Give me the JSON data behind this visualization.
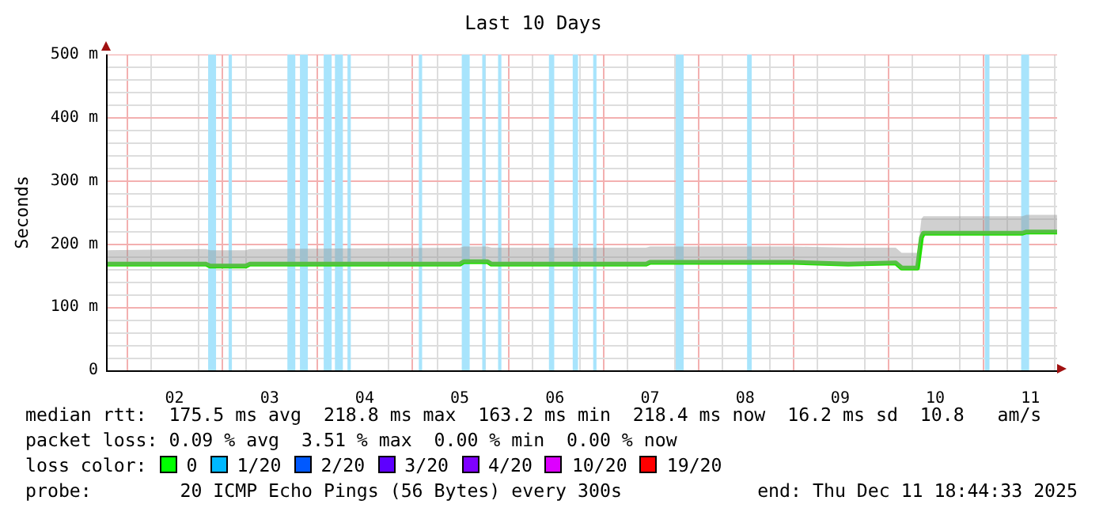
{
  "chart_data": {
    "type": "line",
    "title": "Last 10 Days",
    "ylabel": "Seconds",
    "xlim": [
      "2025-12-01T18:44",
      "2025-12-11T18:44"
    ],
    "xticks": [
      {
        "value": "2025-12-02T12:00",
        "label": "02"
      },
      {
        "value": "2025-12-03T12:00",
        "label": "03"
      },
      {
        "value": "2025-12-04T12:00",
        "label": "04"
      },
      {
        "value": "2025-12-05T12:00",
        "label": "05"
      },
      {
        "value": "2025-12-06T12:00",
        "label": "06"
      },
      {
        "value": "2025-12-07T12:00",
        "label": "07"
      },
      {
        "value": "2025-12-08T12:00",
        "label": "08"
      },
      {
        "value": "2025-12-09T12:00",
        "label": "09"
      },
      {
        "value": "2025-12-10T12:00",
        "label": "10"
      },
      {
        "value": "2025-12-11T12:00",
        "label": "11"
      }
    ],
    "ylim": [
      0,
      500
    ],
    "yticks": [
      {
        "value": 0,
        "label": "0"
      },
      {
        "value": 100,
        "label": "100 m"
      },
      {
        "value": 200,
        "label": "200 m"
      },
      {
        "value": 300,
        "label": "300 m"
      },
      {
        "value": 400,
        "label": "400 m"
      },
      {
        "value": 500,
        "label": "500 m"
      }
    ],
    "grid": true,
    "series": [
      {
        "color": "#22e000",
        "x": [
          "2025-12-01T18:44",
          "2025-12-02T20:00",
          "2025-12-02T21:00",
          "2025-12-03T06:00",
          "2025-12-03T07:00",
          "2025-12-05T12:00",
          "2025-12-05T13:00",
          "2025-12-05T19:00",
          "2025-12-05T20:00",
          "2025-12-07T11:00",
          "2025-12-07T12:00",
          "2025-12-09T00:00",
          "2025-12-09T14:00",
          "2025-12-10T02:00",
          "2025-12-10T03:30",
          "2025-12-10T07:30",
          "2025-12-10T08:30",
          "2025-12-10T09:00",
          "2025-12-11T10:00",
          "2025-12-11T11:00",
          "2025-12-11T18:44"
        ],
        "values": [
          168,
          168,
          165,
          165,
          168,
          168,
          172,
          172,
          168,
          168,
          171,
          171,
          168,
          170,
          162,
          162,
          210,
          217,
          217,
          219,
          219
        ],
        "lower": [
          166,
          166,
          163,
          163,
          166,
          166,
          170,
          170,
          166,
          166,
          169,
          169,
          166,
          168,
          160,
          160,
          208,
          215,
          215,
          217,
          217
        ],
        "upper": [
          190,
          192,
          190,
          190,
          192,
          194,
          196,
          196,
          194,
          194,
          196,
          196,
          194,
          194,
          186,
          186,
          240,
          244,
          244,
          246,
          246
        ]
      }
    ],
    "bands": [
      {
        "axis": "x",
        "from": "2025-12-02T20:30",
        "to": "2025-12-02T22:30",
        "color": "#a8e4fc"
      },
      {
        "axis": "x",
        "from": "2025-12-03T01:40",
        "to": "2025-12-03T02:30",
        "color": "#a8e4fc"
      },
      {
        "axis": "x",
        "from": "2025-12-03T16:30",
        "to": "2025-12-03T18:30",
        "color": "#a8e4fc"
      },
      {
        "axis": "x",
        "from": "2025-12-03T19:40",
        "to": "2025-12-03T21:40",
        "color": "#a8e4fc"
      },
      {
        "axis": "x",
        "from": "2025-12-04T01:40",
        "to": "2025-12-04T03:40",
        "color": "#a8e4fc"
      },
      {
        "axis": "x",
        "from": "2025-12-04T04:30",
        "to": "2025-12-04T06:30",
        "color": "#a8e4fc"
      },
      {
        "axis": "x",
        "from": "2025-12-04T07:40",
        "to": "2025-12-04T08:30",
        "color": "#a8e4fc"
      },
      {
        "axis": "x",
        "from": "2025-12-05T01:40",
        "to": "2025-12-05T02:30",
        "color": "#a8e4fc"
      },
      {
        "axis": "x",
        "from": "2025-12-05T12:30",
        "to": "2025-12-05T14:30",
        "color": "#a8e4fc"
      },
      {
        "axis": "x",
        "from": "2025-12-05T17:40",
        "to": "2025-12-05T18:30",
        "color": "#a8e4fc"
      },
      {
        "axis": "x",
        "from": "2025-12-05T21:40",
        "to": "2025-12-05T22:30",
        "color": "#a8e4fc"
      },
      {
        "axis": "x",
        "from": "2025-12-06T10:30",
        "to": "2025-12-06T11:50",
        "color": "#a8e4fc"
      },
      {
        "axis": "x",
        "from": "2025-12-06T16:30",
        "to": "2025-12-06T17:50",
        "color": "#a8e4fc"
      },
      {
        "axis": "x",
        "from": "2025-12-06T21:40",
        "to": "2025-12-06T22:30",
        "color": "#a8e4fc"
      },
      {
        "axis": "x",
        "from": "2025-12-07T18:30",
        "to": "2025-12-07T20:30",
        "color": "#a8e4fc"
      },
      {
        "axis": "x",
        "from": "2025-12-08T12:30",
        "to": "2025-12-08T13:40",
        "color": "#a8e4fc"
      },
      {
        "axis": "x",
        "from": "2025-12-11T00:30",
        "to": "2025-12-11T01:40",
        "color": "#a8e4fc"
      },
      {
        "axis": "x",
        "from": "2025-12-11T09:40",
        "to": "2025-12-11T11:40",
        "color": "#a8e4fc"
      }
    ],
    "annotations": [
      "median rtt:  175.5 ms avg  218.8 ms max  163.2 ms min  218.4 ms now  16.2 ms sd  10.8   am/s",
      "packet loss: 0.09 % avg  3.51 % max  0.00 % min  0.00 % now",
      "loss color:",
      "0",
      "1/20",
      "2/20",
      "3/20",
      "4/20",
      "10/20",
      "19/20",
      "probe:        20 ICMP Echo Pings (56 Bytes) every 300s",
      "end: Thu Dec 11 18:44:33 2025"
    ]
  }
}
